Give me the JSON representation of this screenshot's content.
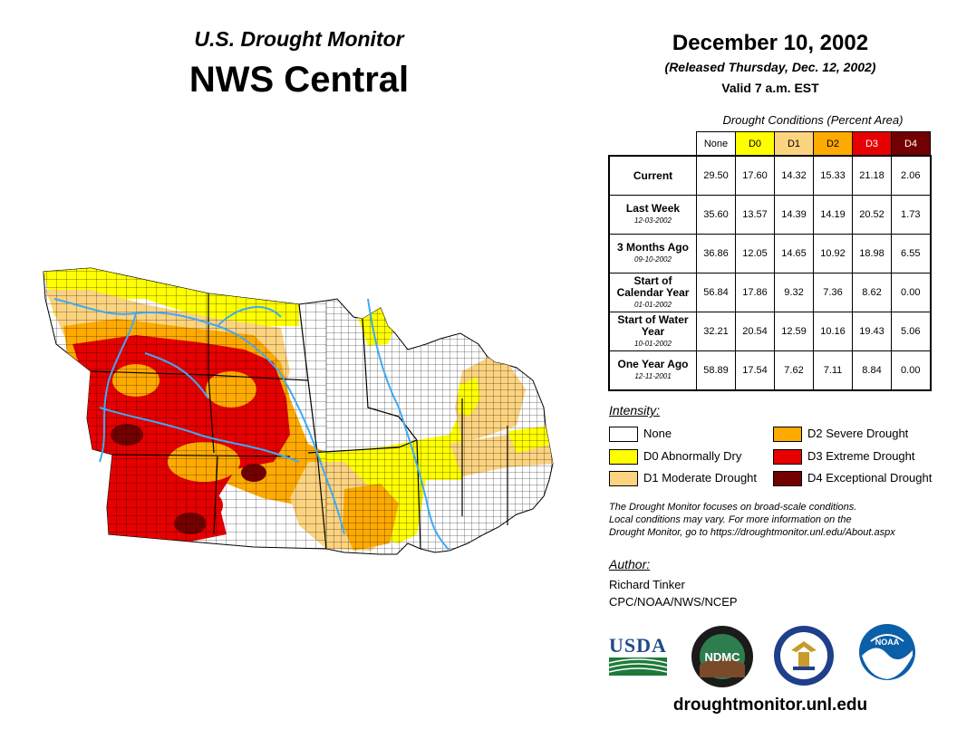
{
  "header": {
    "title_line1": "U.S. Drought Monitor",
    "title_line2": "NWS Central",
    "date": "December 10, 2002",
    "released": "(Released Thursday, Dec. 12, 2002)",
    "valid": "Valid 7 a.m. EST"
  },
  "stats_table": {
    "caption": "Drought Conditions (Percent Area)",
    "columns": [
      "None",
      "D0",
      "D1",
      "D2",
      "D3",
      "D4"
    ],
    "rows": [
      {
        "label": "Current",
        "sub": "",
        "values": [
          "29.50",
          "17.60",
          "14.32",
          "15.33",
          "21.18",
          "2.06"
        ]
      },
      {
        "label": "Last Week",
        "sub": "12-03-2002",
        "values": [
          "35.60",
          "13.57",
          "14.39",
          "14.19",
          "20.52",
          "1.73"
        ]
      },
      {
        "label": "3 Months Ago",
        "sub": "09-10-2002",
        "values": [
          "36.86",
          "12.05",
          "14.65",
          "10.92",
          "18.98",
          "6.55"
        ]
      },
      {
        "label": "Start of Calendar Year",
        "sub": "01-01-2002",
        "values": [
          "56.84",
          "17.86",
          "9.32",
          "7.36",
          "8.62",
          "0.00"
        ]
      },
      {
        "label": "Start of Water Year",
        "sub": "10-01-2002",
        "values": [
          "32.21",
          "20.54",
          "12.59",
          "10.16",
          "19.43",
          "5.06"
        ]
      },
      {
        "label": "One Year Ago",
        "sub": "12-11-2001",
        "values": [
          "58.89",
          "17.54",
          "7.62",
          "7.11",
          "8.84",
          "0.00"
        ]
      }
    ]
  },
  "legend": {
    "title": "Intensity:",
    "items": [
      {
        "label": "None",
        "color": "#ffffff"
      },
      {
        "label": "D0 Abnormally Dry",
        "color": "#ffff00"
      },
      {
        "label": "D1 Moderate Drought",
        "color": "#fcd37f"
      },
      {
        "label": "D2 Severe Drought",
        "color": "#ffaa00"
      },
      {
        "label": "D3 Extreme Drought",
        "color": "#e60000"
      },
      {
        "label": "D4 Exceptional Drought",
        "color": "#730000"
      }
    ]
  },
  "note": {
    "line1": "The Drought Monitor focuses on broad-scale conditions.",
    "line2": "Local conditions may vary. For more information on the",
    "line3": "Drought Monitor, go to https://droughtmonitor.unl.edu/About.aspx"
  },
  "author": {
    "title": "Author:",
    "name": "Richard Tinker",
    "org": "CPC/NOAA/NWS/NCEP"
  },
  "logos": {
    "usda": "USDA",
    "ndmc": "NDMC",
    "noaa": "NOAA"
  },
  "footer": {
    "website": "droughtmonitor.unl.edu"
  },
  "colors": {
    "none": "#ffffff",
    "d0": "#ffff00",
    "d1": "#fcd37f",
    "d2": "#ffaa00",
    "d3": "#e60000",
    "d4": "#730000",
    "river": "#3fa9f5"
  }
}
